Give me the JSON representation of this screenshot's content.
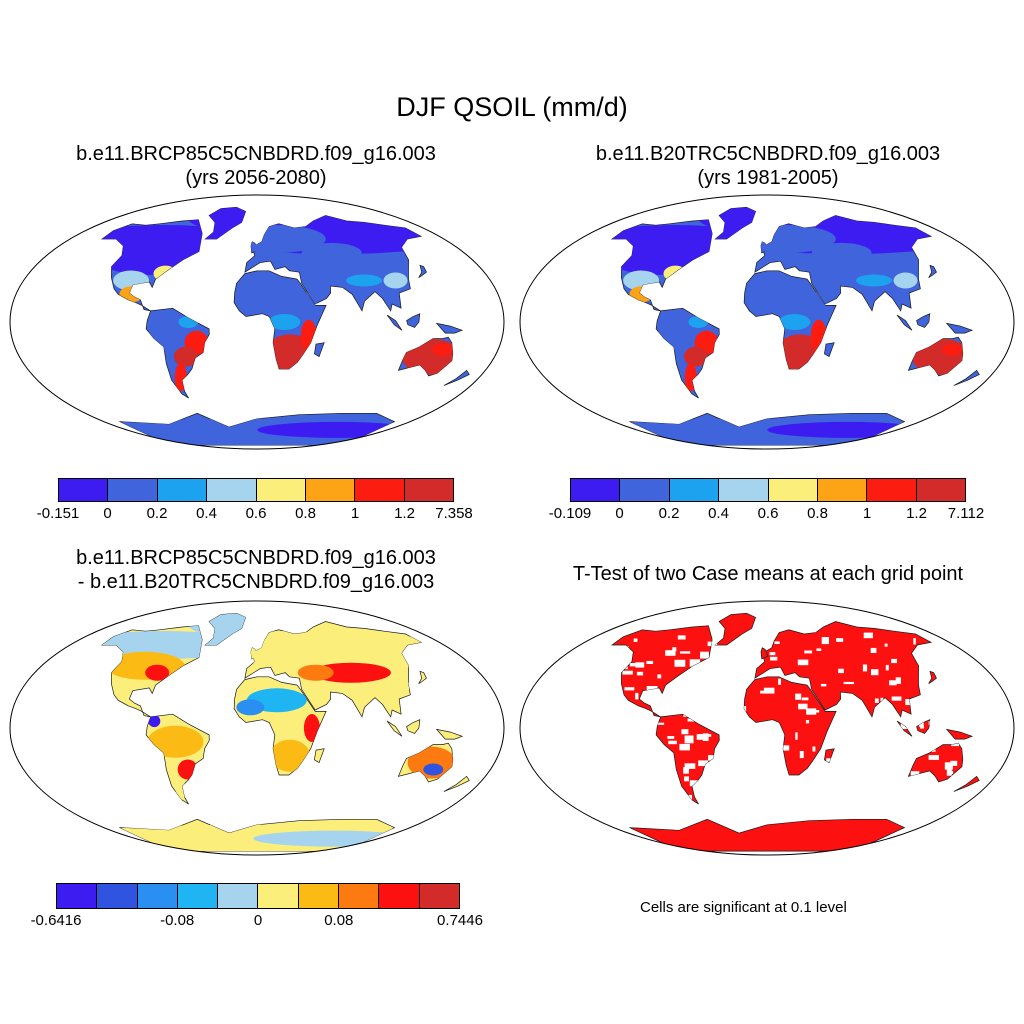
{
  "title": "DJF QSOIL (mm/d)",
  "panels": [
    {
      "title1": "b.e11.BRCP85C5CNBDRD.f09_g16.003",
      "title2": "(yrs 2056-2080)",
      "colorbar": {
        "colors": [
          "#3d1cf2",
          "#3f64dc",
          "#1ca2ef",
          "#a6d4ef",
          "#fcee7a",
          "#fda316",
          "#fc1c10",
          "#d32a2a"
        ],
        "labels": [
          "-0.151",
          "0",
          "0.2",
          "0.4",
          "0.6",
          "0.8",
          "1",
          "1.2",
          "7.358"
        ]
      }
    },
    {
      "title1": "b.e11.B20TRC5CNBDRD.f09_g16.003",
      "title2": "(yrs 1981-2005)",
      "colorbar": {
        "colors": [
          "#3d1cf2",
          "#3f64dc",
          "#1ca2ef",
          "#a6d4ef",
          "#fcee7a",
          "#fda316",
          "#fc1c10",
          "#d32a2a"
        ],
        "labels": [
          "-0.109",
          "0",
          "0.2",
          "0.4",
          "0.6",
          "0.8",
          "1",
          "1.2",
          "7.112"
        ]
      }
    },
    {
      "title1": "b.e11.BRCP85C5CNBDRD.f09_g16.003",
      "title2": "- b.e11.B20TRC5CNBDRD.f09_g16.003",
      "colorbar": {
        "colors": [
          "#3d1cf2",
          "#3154e0",
          "#2a8ff0",
          "#1fb4f2",
          "#a6d4ef",
          "#fcee7a",
          "#fcbb14",
          "#fd7a10",
          "#fc1010",
          "#d32a2a"
        ],
        "labels": [
          "-0.6416",
          "-0.08",
          "0",
          "0.08",
          "0.7446"
        ]
      }
    },
    {
      "title1": "T-Test of two Case means at each grid point",
      "note": "Cells are significant at 0.1 level",
      "significant_color": "#fc1010"
    }
  ]
}
